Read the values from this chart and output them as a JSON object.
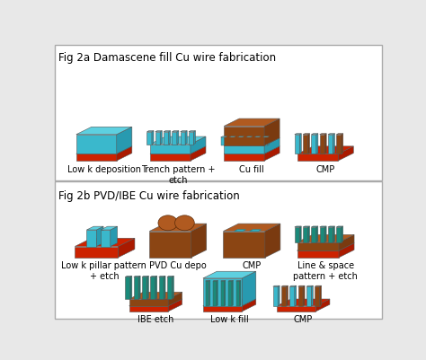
{
  "title_2a": "Fig 2a Damascene fill Cu wire fabrication",
  "title_2b": "Fig 2b PVD/IBE Cu wire fabrication",
  "bg_color": "#e8e8e8",
  "colors": {
    "cyan": "#3ab8cc",
    "cyan_dark": "#2090a8",
    "cyan_top": "#5dd0e0",
    "cyan_side": "#289ab0",
    "red": "#cc2200",
    "red_dark": "#991100",
    "red_side": "#aa1a00",
    "brown": "#8B4513",
    "brown_dark": "#5a2a08",
    "brown_top": "#b05a20",
    "brown_side": "#7a3a10",
    "teal": "#1a8a7a",
    "teal_dark": "#0f6055",
    "teal_top": "#25aaaa",
    "teal_side": "#177a70"
  },
  "labels_2a": [
    "Low k deposition",
    "Trench pattern +\netch",
    "Cu fill",
    "CMP"
  ],
  "labels_2b_top": [
    "Low k pillar pattern\n+ etch",
    "PVD Cu depo",
    "CMP",
    "Line & space\npattern + etch"
  ],
  "labels_2b_bot": [
    "IBE etch",
    "Low k fill",
    "CMP"
  ],
  "font_size_title": 8.5,
  "font_size_label": 7.0
}
